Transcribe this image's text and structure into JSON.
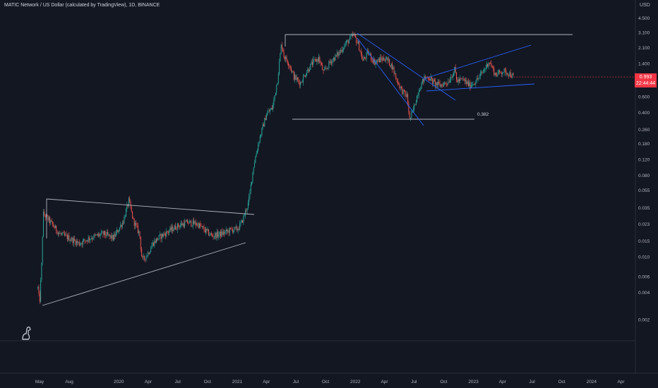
{
  "header": {
    "title": "MATIC Network / US Dollar (calculated by TradingView), 1D, BINANCE",
    "currency": "USD"
  },
  "price_tag": {
    "price": "0.993",
    "countdown": "22:44:44"
  },
  "colors": {
    "background": "#131722",
    "up": "#26a69a",
    "down": "#ef5350",
    "wedge_lines": "#2962ff",
    "pattern_lines": "#b2b5be",
    "price_tag": "#f23645"
  },
  "chart_data": {
    "type": "candlestick",
    "y_scale": "log",
    "y_ticks": [
      "4.500",
      "3.100",
      "2.100",
      "1.400",
      "0.900",
      "0.600",
      "0.400",
      "0.260",
      "0.180",
      "0.120",
      "0.080",
      "0.055",
      "0.035",
      "0.023",
      "0.015",
      "0.010",
      "0.006",
      "0.004",
      "0.002"
    ],
    "x_ticks": [
      "May",
      "Aug",
      "2020",
      "Apr",
      "Jul",
      "Oct",
      "2021",
      "Apr",
      "Jul",
      "Oct",
      "2022",
      "Apr",
      "Jul",
      "Oct",
      "2023",
      "Apr",
      "Jul",
      "Oct",
      "2024",
      "Apr"
    ],
    "xlim": [
      "2019-04",
      "2024-05"
    ],
    "fib_label": "0.382",
    "price_path": [
      [
        "2019-04-26",
        0.0045
      ],
      [
        "2019-05-01",
        0.003
      ],
      [
        "2019-05-08",
        0.009
      ],
      [
        "2019-05-12",
        0.03
      ],
      [
        "2019-06-01",
        0.025
      ],
      [
        "2019-07-01",
        0.018
      ],
      [
        "2019-08-01",
        0.016
      ],
      [
        "2019-09-01",
        0.014
      ],
      [
        "2019-10-01",
        0.016
      ],
      [
        "2019-11-15",
        0.018
      ],
      [
        "2019-12-15",
        0.016
      ],
      [
        "2020-01-15",
        0.025
      ],
      [
        "2020-02-01",
        0.042
      ],
      [
        "2020-02-15",
        0.025
      ],
      [
        "2020-03-05",
        0.018
      ],
      [
        "2020-03-13",
        0.009
      ],
      [
        "2020-04-01",
        0.011
      ],
      [
        "2020-04-15",
        0.014
      ],
      [
        "2020-05-01",
        0.016
      ],
      [
        "2020-06-01",
        0.019
      ],
      [
        "2020-07-01",
        0.022
      ],
      [
        "2020-08-01",
        0.024
      ],
      [
        "2020-09-01",
        0.023
      ],
      [
        "2020-09-20",
        0.02
      ],
      [
        "2020-10-15",
        0.017
      ],
      [
        "2020-11-15",
        0.018
      ],
      [
        "2020-12-15",
        0.02
      ],
      [
        "2021-01-01",
        0.02
      ],
      [
        "2021-01-15",
        0.024
      ],
      [
        "2021-02-05",
        0.04
      ],
      [
        "2021-02-20",
        0.1
      ],
      [
        "2021-03-10",
        0.2
      ],
      [
        "2021-04-01",
        0.38
      ],
      [
        "2021-04-20",
        0.45
      ],
      [
        "2021-05-05",
        0.9
      ],
      [
        "2021-05-18",
        2.4
      ],
      [
        "2021-05-25",
        1.7
      ],
      [
        "2021-06-10",
        1.4
      ],
      [
        "2021-06-25",
        1.0
      ],
      [
        "2021-07-15",
        0.85
      ],
      [
        "2021-08-01",
        1.1
      ],
      [
        "2021-08-20",
        1.4
      ],
      [
        "2021-09-10",
        1.6
      ],
      [
        "2021-09-25",
        1.1
      ],
      [
        "2021-10-15",
        1.45
      ],
      [
        "2021-11-10",
        1.8
      ],
      [
        "2021-12-01",
        2.3
      ],
      [
        "2021-12-27",
        2.9
      ],
      [
        "2022-01-10",
        2.3
      ],
      [
        "2022-01-24",
        1.5
      ],
      [
        "2022-02-10",
        1.85
      ],
      [
        "2022-03-01",
        1.45
      ],
      [
        "2022-03-20",
        1.55
      ],
      [
        "2022-04-05",
        1.6
      ],
      [
        "2022-04-25",
        1.3
      ],
      [
        "2022-05-10",
        0.9
      ],
      [
        "2022-05-25",
        0.7
      ],
      [
        "2022-06-10",
        0.6
      ],
      [
        "2022-06-18",
        0.33
      ],
      [
        "2022-07-01",
        0.45
      ],
      [
        "2022-07-15",
        0.7
      ],
      [
        "2022-08-01",
        0.95
      ],
      [
        "2022-08-15",
        1.0
      ],
      [
        "2022-09-01",
        0.85
      ],
      [
        "2022-09-20",
        0.8
      ],
      [
        "2022-10-15",
        0.88
      ],
      [
        "2022-11-05",
        1.2
      ],
      [
        "2022-11-10",
        0.9
      ],
      [
        "2022-12-01",
        0.92
      ],
      [
        "2022-12-20",
        0.8
      ],
      [
        "2023-01-10",
        0.9
      ],
      [
        "2023-01-20",
        1.0
      ],
      [
        "2023-02-10",
        1.3
      ],
      [
        "2023-02-18",
        1.5
      ],
      [
        "2023-03-10",
        1.05
      ],
      [
        "2023-04-01",
        1.15
      ],
      [
        "2023-04-20",
        1.1
      ],
      [
        "2023-05-05",
        0.993
      ]
    ]
  }
}
